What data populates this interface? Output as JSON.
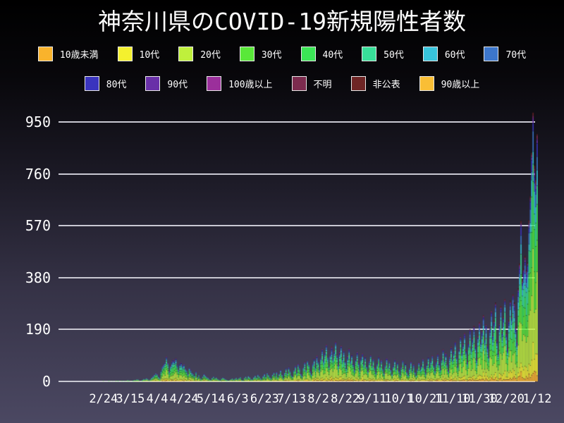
{
  "colors": {
    "background_top": "#000000",
    "background_bottom": "#4b4862",
    "text": "#ffffff",
    "gridline": "#c9c8d2"
  },
  "chart_data": {
    "type": "bar",
    "stacked": true,
    "title": "神奈川県のCOVID-19新規陽性者数",
    "legend_position": "top",
    "y_axis": {
      "ylim": [
        0,
        1010
      ],
      "grid": true,
      "gridline_values": [
        0,
        190,
        380,
        570,
        760,
        950
      ]
    },
    "x_axis": {
      "total_days": 357,
      "ticks": [
        {
          "label": "2/24",
          "day": 33
        },
        {
          "label": "3/15",
          "day": 53
        },
        {
          "label": "4/4",
          "day": 73
        },
        {
          "label": "4/24",
          "day": 93
        },
        {
          "label": "5/14",
          "day": 113
        },
        {
          "label": "6/3",
          "day": 133
        },
        {
          "label": "6/23",
          "day": 153
        },
        {
          "label": "7/13",
          "day": 173
        },
        {
          "label": "8/2",
          "day": 193
        },
        {
          "label": "8/22",
          "day": 213
        },
        {
          "label": "9/11",
          "day": 233
        },
        {
          "label": "10/1",
          "day": 253
        },
        {
          "label": "10/21",
          "day": 273
        },
        {
          "label": "11/10",
          "day": 293
        },
        {
          "label": "11/30",
          "day": 313
        },
        {
          "label": "12/20",
          "day": 333
        },
        {
          "label": "1/12",
          "day": 356
        }
      ]
    },
    "series": [
      {
        "name": "10歳未満",
        "color": "#F9B32C",
        "fraction": 0.04,
        "legend_row": 1
      },
      {
        "name": "10代",
        "color": "#F4F12E",
        "fraction": 0.08,
        "legend_row": 1
      },
      {
        "name": "20代",
        "color": "#BFF03C",
        "fraction": 0.255,
        "legend_row": 1
      },
      {
        "name": "30代",
        "color": "#59E839",
        "fraction": 0.165,
        "legend_row": 1
      },
      {
        "name": "40代",
        "color": "#3BE556",
        "fraction": 0.14,
        "legend_row": 1
      },
      {
        "name": "50代",
        "color": "#38DF99",
        "fraction": 0.115,
        "legend_row": 1
      },
      {
        "name": "60代",
        "color": "#38C4DC",
        "fraction": 0.07,
        "legend_row": 1
      },
      {
        "name": "70代",
        "color": "#3C76CB",
        "fraction": 0.055,
        "legend_row": 1
      },
      {
        "name": "80代",
        "color": "#3A34BE",
        "fraction": 0.038,
        "legend_row": 2
      },
      {
        "name": "90代",
        "color": "#6930A8",
        "fraction": 0.018,
        "legend_row": 2
      },
      {
        "name": "100歳以上",
        "color": "#9B2F9B",
        "fraction": 0.004,
        "legend_row": 2
      },
      {
        "name": "不明",
        "color": "#7C2B4E",
        "fraction": 0.012,
        "legend_row": 2
      },
      {
        "name": "非公表",
        "color": "#6E2525",
        "fraction": 0.008,
        "legend_row": 2
      },
      {
        "name": "90歳以上",
        "color": "#F9BE35",
        "fraction": 0.0,
        "legend_row": 2
      }
    ],
    "daily_totals": [
      0,
      0,
      0,
      0,
      0,
      0,
      0,
      0,
      1,
      0,
      0,
      0,
      0,
      0,
      0,
      0,
      0,
      0,
      0,
      0,
      0,
      0,
      0,
      0,
      0,
      1,
      0,
      0,
      1,
      0,
      0,
      1,
      1,
      2,
      1,
      0,
      1,
      3,
      2,
      1,
      2,
      0,
      3,
      2,
      4,
      1,
      2,
      3,
      2,
      3,
      2,
      5,
      4,
      2,
      1,
      4,
      6,
      5,
      8,
      7,
      3,
      2,
      6,
      9,
      8,
      12,
      9,
      4,
      8,
      14,
      20,
      25,
      31,
      28,
      17,
      12,
      42,
      57,
      63,
      71,
      92,
      68,
      39,
      58,
      74,
      81,
      77,
      86,
      62,
      45,
      66,
      70,
      59,
      64,
      48,
      41,
      29,
      52,
      44,
      33,
      27,
      21,
      38,
      16,
      24,
      12,
      9,
      19,
      28,
      22,
      17,
      14,
      8,
      6,
      13,
      18,
      11,
      15,
      9,
      7,
      4,
      10,
      14,
      12,
      8,
      6,
      3,
      5,
      9,
      11,
      7,
      10,
      14,
      8,
      12,
      16,
      6,
      4,
      13,
      18,
      11,
      20,
      15,
      9,
      7,
      16,
      22,
      14,
      25,
      19,
      12,
      8,
      21,
      28,
      17,
      31,
      24,
      15,
      11,
      26,
      34,
      22,
      35,
      16,
      29,
      42,
      25,
      13,
      33,
      48,
      31,
      53,
      39,
      24,
      18,
      43,
      58,
      36,
      65,
      49,
      29,
      21,
      52,
      71,
      44,
      78,
      63,
      38,
      27,
      68,
      85,
      57,
      95,
      76,
      49,
      88,
      119,
      81,
      107,
      135,
      92,
      58,
      103,
      128,
      84,
      112,
      146,
      98,
      63,
      109,
      132,
      87,
      115,
      76,
      52,
      94,
      121,
      78,
      99,
      66,
      45,
      83,
      108,
      71,
      47,
      89,
      103,
      68,
      92,
      58,
      39,
      76,
      97,
      62,
      84,
      53,
      34,
      69,
      91,
      57,
      79,
      48,
      31,
      63,
      86,
      54,
      74,
      44,
      28,
      59,
      81,
      51,
      70,
      42,
      26,
      55,
      78,
      49,
      67,
      38,
      24,
      52,
      73,
      46,
      64,
      35,
      22,
      49,
      70,
      44,
      61,
      83,
      52,
      33,
      66,
      90,
      58,
      77,
      95,
      61,
      41,
      74,
      101,
      68,
      48,
      86,
      117,
      79,
      104,
      64,
      42,
      93,
      127,
      85,
      112,
      146,
      91,
      58,
      121,
      163,
      107,
      138,
      178,
      115,
      73,
      142,
      191,
      126,
      158,
      204,
      131,
      84,
      166,
      218,
      147,
      186,
      243,
      158,
      209,
      134,
      96,
      198,
      258,
      169,
      224,
      289,
      151,
      107,
      211,
      276,
      181,
      237,
      302,
      176,
      121,
      226,
      295,
      238,
      319,
      289,
      198,
      146,
      341,
      432,
      588,
      371,
      414,
      459,
      408,
      436,
      591,
      679,
      838,
      985,
      791,
      738,
      906
    ]
  }
}
